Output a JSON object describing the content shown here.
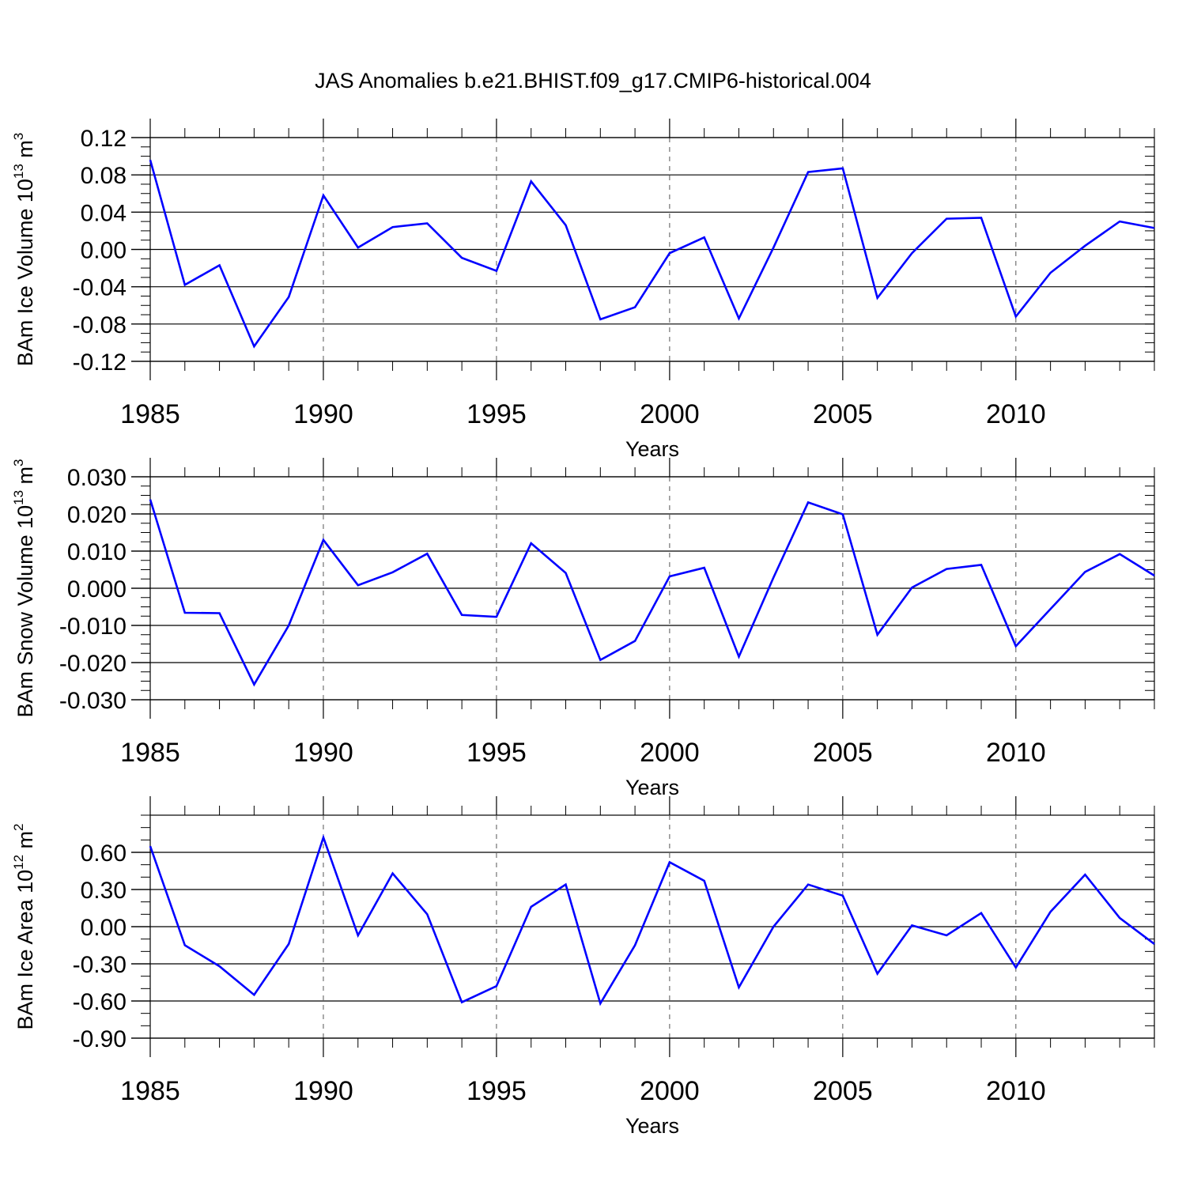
{
  "chart_data": {
    "title": "JAS Anomalies b.e21.BHIST.f09_g17.CMIP6-historical.004",
    "panels": [
      {
        "type": "line",
        "ylabel_main": "BAm Ice Volume 10",
        "ylabel_exp": "13",
        "ylabel_unit": " m",
        "ylabel_unit_exp": "3",
        "xlabel": "Years",
        "xlim": [
          1985,
          2014
        ],
        "ylim": [
          -0.12,
          0.12
        ],
        "xticks": [
          1985,
          1990,
          1995,
          2000,
          2005,
          2010
        ],
        "xtick_labels": [
          "1985",
          "1990",
          "1995",
          "2000",
          "2005",
          "2010"
        ],
        "yticks": [
          0.12,
          0.08,
          0.04,
          0.0,
          -0.04,
          -0.08,
          -0.12
        ],
        "ytick_labels": [
          "0.12",
          "0.08",
          "0.04",
          "0.00",
          "-0.04",
          "-0.08",
          "-0.12"
        ],
        "yminor_step": 0.01,
        "x": [
          1985,
          1986,
          1987,
          1988,
          1989,
          1990,
          1991,
          1992,
          1993,
          1994,
          1995,
          1996,
          1997,
          1998,
          1999,
          2000,
          2001,
          2002,
          2003,
          2004,
          2005,
          2006,
          2007,
          2008,
          2009,
          2010,
          2011,
          2012,
          2013,
          2014
        ],
        "y": [
          0.096,
          -0.038,
          -0.017,
          -0.104,
          -0.051,
          0.058,
          0.002,
          0.024,
          0.028,
          -0.009,
          -0.023,
          0.073,
          0.026,
          -0.075,
          -0.062,
          -0.004,
          0.013,
          -0.074,
          0.002,
          0.083,
          0.087,
          -0.052,
          -0.004,
          0.033,
          0.034,
          -0.072,
          -0.025,
          0.004,
          0.03,
          0.023
        ]
      },
      {
        "type": "line",
        "ylabel_main": "BAm Snow Volume 10",
        "ylabel_exp": "13",
        "ylabel_unit": " m",
        "ylabel_unit_exp": "3",
        "xlabel": "Years",
        "xlim": [
          1985,
          2014
        ],
        "ylim": [
          -0.03,
          0.03
        ],
        "xticks": [
          1985,
          1990,
          1995,
          2000,
          2005,
          2010
        ],
        "xtick_labels": [
          "1985",
          "1990",
          "1995",
          "2000",
          "2005",
          "2010"
        ],
        "yticks": [
          0.03,
          0.02,
          0.01,
          0.0,
          -0.01,
          -0.02,
          -0.03
        ],
        "ytick_labels": [
          "0.030",
          "0.020",
          "0.010",
          "0.000",
          "-0.010",
          "-0.020",
          "-0.030"
        ],
        "yminor_step": 0.0025,
        "x": [
          1985,
          1986,
          1987,
          1988,
          1989,
          1990,
          1991,
          1992,
          1993,
          1994,
          1995,
          1996,
          1997,
          1998,
          1999,
          2000,
          2001,
          2002,
          2003,
          2004,
          2005,
          2006,
          2007,
          2008,
          2009,
          2010,
          2011,
          2012,
          2013,
          2014
        ],
        "y": [
          0.0239,
          -0.0066,
          -0.0067,
          -0.0259,
          -0.01,
          0.013,
          0.0008,
          0.0043,
          0.0093,
          -0.0072,
          -0.0077,
          0.0121,
          0.0041,
          -0.0193,
          -0.0142,
          0.0032,
          0.0055,
          -0.0184,
          0.0029,
          0.0231,
          0.0199,
          -0.0125,
          0.0002,
          0.0052,
          0.0063,
          -0.0156,
          -0.0056,
          0.0044,
          0.0092,
          0.0034
        ]
      },
      {
        "type": "line",
        "ylabel_main": "BAm Ice Area 10",
        "ylabel_exp": "12",
        "ylabel_unit": " m",
        "ylabel_unit_exp": "2",
        "xlabel": "Years",
        "xlim": [
          1985,
          2014
        ],
        "ylim": [
          -0.9,
          0.9
        ],
        "xticks": [
          1985,
          1990,
          1995,
          2000,
          2005,
          2010
        ],
        "xtick_labels": [
          "1985",
          "1990",
          "1995",
          "2000",
          "2005",
          "2010"
        ],
        "yticks": [
          0.6,
          0.3,
          0.0,
          -0.3,
          -0.6,
          -0.9
        ],
        "ytick_labels": [
          "0.60",
          "0.30",
          "0.00",
          "-0.30",
          "-0.60",
          "-0.90"
        ],
        "yminor_step": 0.1,
        "x": [
          1985,
          1986,
          1987,
          1988,
          1989,
          1990,
          1991,
          1992,
          1993,
          1994,
          1995,
          1996,
          1997,
          1998,
          1999,
          2000,
          2001,
          2002,
          2003,
          2004,
          2005,
          2006,
          2007,
          2008,
          2009,
          2010,
          2011,
          2012,
          2013,
          2014
        ],
        "y": [
          0.65,
          -0.15,
          -0.32,
          -0.55,
          -0.14,
          0.72,
          -0.07,
          0.43,
          0.1,
          -0.61,
          -0.48,
          0.16,
          0.34,
          -0.62,
          -0.15,
          0.52,
          0.37,
          -0.49,
          0.0,
          0.34,
          0.25,
          -0.38,
          0.01,
          -0.07,
          0.11,
          -0.33,
          0.12,
          0.42,
          0.07,
          -0.14
        ]
      }
    ]
  }
}
